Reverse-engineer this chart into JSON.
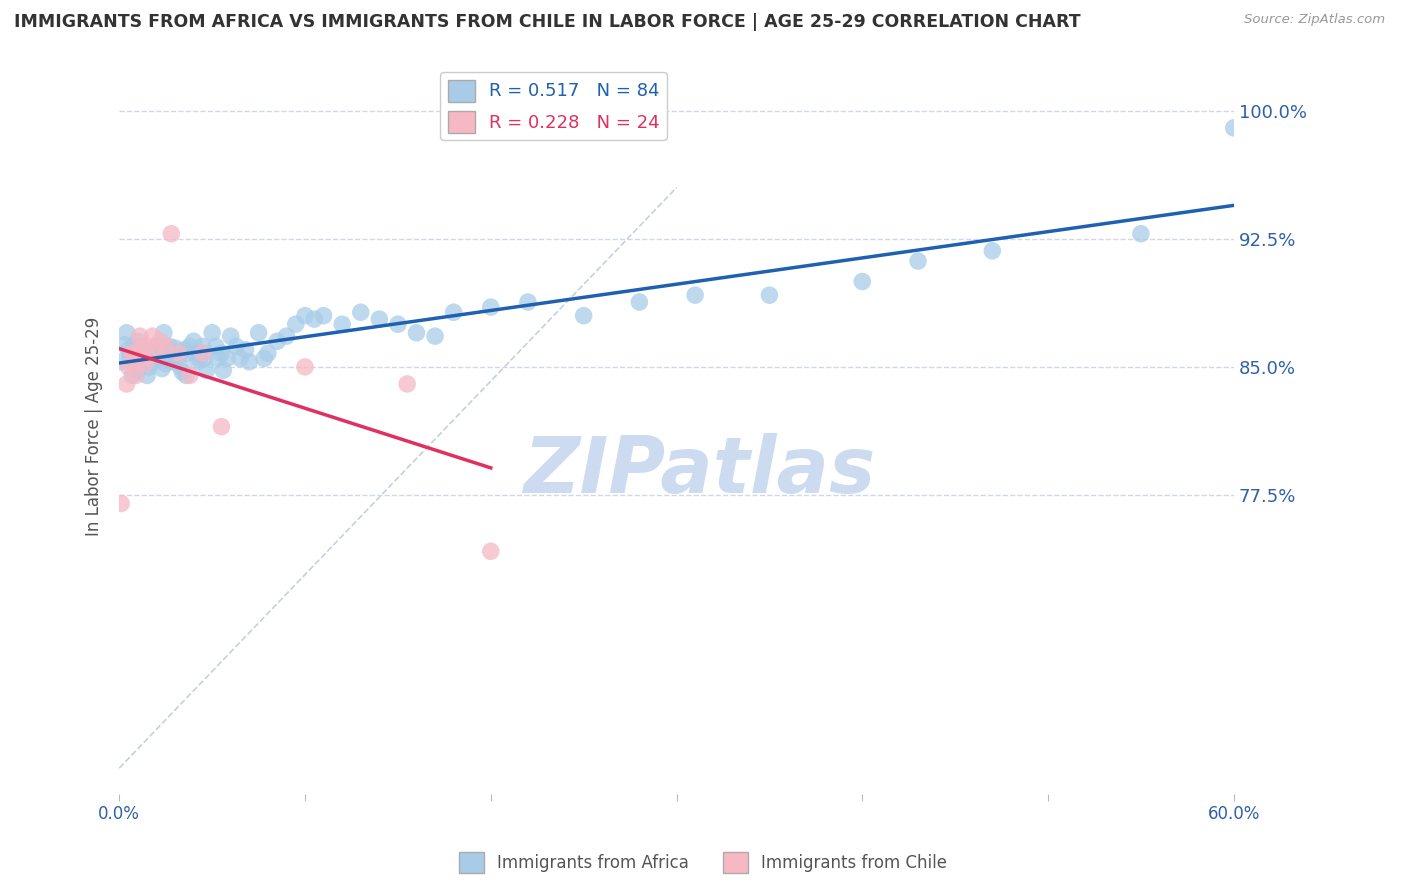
{
  "title": "IMMIGRANTS FROM AFRICA VS IMMIGRANTS FROM CHILE IN LABOR FORCE | AGE 25-29 CORRELATION CHART",
  "source": "Source: ZipAtlas.com",
  "ylabel": "In Labor Force | Age 25-29",
  "xlim": [
    0.0,
    0.6
  ],
  "ylim": [
    0.6,
    1.03
  ],
  "yticks": [
    0.775,
    0.85,
    0.925,
    1.0
  ],
  "ytick_labels": [
    "77.5%",
    "85.0%",
    "92.5%",
    "100.0%"
  ],
  "xticks": [
    0.0,
    0.1,
    0.2,
    0.3,
    0.4,
    0.5,
    0.6
  ],
  "blue_color": "#a8cce8",
  "pink_color": "#f5b8c4",
  "trendline_blue": "#2060b0",
  "trendline_pink": "#e03060",
  "grid_color": "#d0d8e8",
  "watermark_color": "#c8d8f0",
  "africa_x": [
    0.001,
    0.003,
    0.004,
    0.005,
    0.006,
    0.007,
    0.008,
    0.009,
    0.01,
    0.01,
    0.011,
    0.012,
    0.013,
    0.014,
    0.015,
    0.016,
    0.017,
    0.018,
    0.019,
    0.02,
    0.021,
    0.022,
    0.023,
    0.024,
    0.025,
    0.026,
    0.027,
    0.028,
    0.029,
    0.03,
    0.031,
    0.032,
    0.033,
    0.034,
    0.035,
    0.036,
    0.037,
    0.038,
    0.04,
    0.041,
    0.042,
    0.043,
    0.044,
    0.045,
    0.046,
    0.047,
    0.05,
    0.052,
    0.053,
    0.055,
    0.056,
    0.058,
    0.06,
    0.063,
    0.065,
    0.068,
    0.07,
    0.075,
    0.078,
    0.08,
    0.085,
    0.09,
    0.095,
    0.1,
    0.105,
    0.11,
    0.12,
    0.13,
    0.14,
    0.15,
    0.16,
    0.17,
    0.18,
    0.2,
    0.22,
    0.25,
    0.28,
    0.31,
    0.35,
    0.4,
    0.43,
    0.47,
    0.55,
    0.6
  ],
  "africa_y": [
    0.853,
    0.863,
    0.87,
    0.86,
    0.855,
    0.845,
    0.862,
    0.858,
    0.848,
    0.865,
    0.852,
    0.858,
    0.86,
    0.855,
    0.845,
    0.85,
    0.857,
    0.853,
    0.861,
    0.862,
    0.855,
    0.856,
    0.849,
    0.87,
    0.852,
    0.858,
    0.862,
    0.855,
    0.853,
    0.861,
    0.858,
    0.856,
    0.85,
    0.847,
    0.86,
    0.845,
    0.858,
    0.862,
    0.865,
    0.858,
    0.853,
    0.855,
    0.858,
    0.862,
    0.855,
    0.848,
    0.87,
    0.862,
    0.855,
    0.858,
    0.848,
    0.855,
    0.868,
    0.862,
    0.855,
    0.86,
    0.853,
    0.87,
    0.855,
    0.858,
    0.865,
    0.868,
    0.875,
    0.88,
    0.878,
    0.88,
    0.875,
    0.882,
    0.878,
    0.875,
    0.87,
    0.868,
    0.882,
    0.885,
    0.888,
    0.88,
    0.888,
    0.892,
    0.892,
    0.9,
    0.912,
    0.918,
    0.928,
    0.99
  ],
  "chile_x": [
    0.001,
    0.004,
    0.005,
    0.007,
    0.008,
    0.009,
    0.01,
    0.011,
    0.012,
    0.013,
    0.014,
    0.015,
    0.018,
    0.02,
    0.022,
    0.025,
    0.028,
    0.032,
    0.038,
    0.045,
    0.055,
    0.1,
    0.155,
    0.2
  ],
  "chile_y": [
    0.77,
    0.84,
    0.85,
    0.858,
    0.852,
    0.845,
    0.858,
    0.868,
    0.862,
    0.855,
    0.852,
    0.862,
    0.868,
    0.858,
    0.865,
    0.862,
    0.928,
    0.858,
    0.845,
    0.858,
    0.815,
    0.85,
    0.84,
    0.742
  ]
}
